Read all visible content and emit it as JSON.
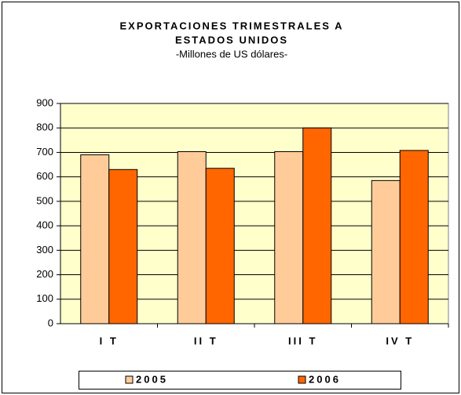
{
  "chart_data": {
    "type": "bar",
    "title": [
      "EXPORTACIONES TRIMESTRALES A",
      "ESTADOS UNIDOS"
    ],
    "subtitle": "-Millones de US dólares-",
    "categories": [
      "I T",
      "II T",
      "III T",
      "IV T"
    ],
    "series": [
      {
        "name": "2005",
        "color": "#ffcc99",
        "values": [
          690,
          703,
          703,
          585
        ]
      },
      {
        "name": "2006",
        "color": "#ff6600",
        "values": [
          630,
          635,
          800,
          708
        ]
      }
    ],
    "ylim": [
      0,
      900
    ],
    "yticks": [
      0,
      100,
      200,
      300,
      400,
      500,
      600,
      700,
      800,
      900
    ],
    "grid": true,
    "legend": "bottom",
    "plot_background": "#ffffcc"
  }
}
